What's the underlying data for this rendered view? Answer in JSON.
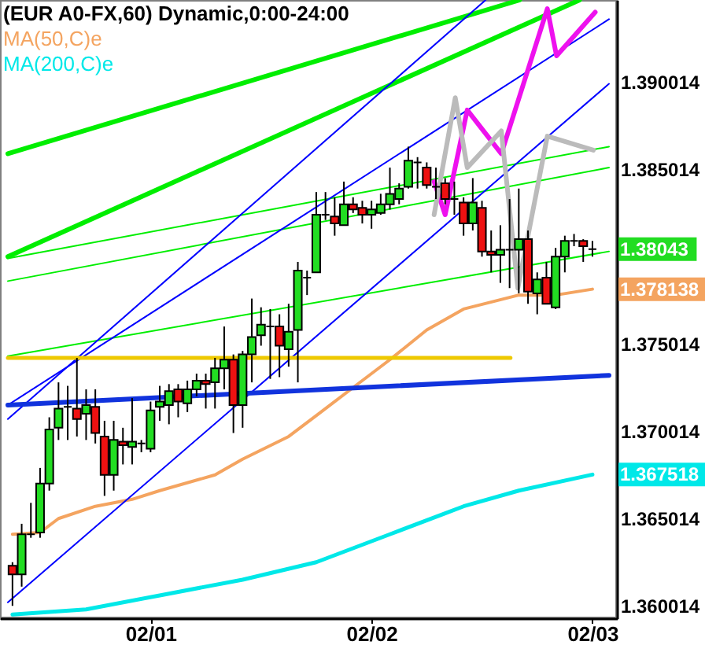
{
  "chart_data": {
    "type": "candlestick",
    "title": "(EUR A0-FX,60) Dynamic,0:00-24:00",
    "x": [
      "--01-31T09:00",
      "--01-31T10:00",
      "--01-31T11:00",
      "--01-31T12:00",
      "--01-31T13:00",
      "--01-31T14:00",
      "--01-31T15:00",
      "--01-31T16:00",
      "--01-31T17:00",
      "--01-31T18:00",
      "--01-31T19:00",
      "--01-31T20:00",
      "--01-31T21:00",
      "--01-31T22:00",
      "--01-31T23:00",
      "--02-01T00:00",
      "--02-01T01:00",
      "--02-01T02:00",
      "--02-01T03:00",
      "--02-01T04:00",
      "--02-01T05:00",
      "--02-01T06:00",
      "--02-01T07:00",
      "--02-01T08:00",
      "--02-01T09:00",
      "--02-01T10:00",
      "--02-01T11:00",
      "--02-01T12:00",
      "--02-01T13:00",
      "--02-01T14:00",
      "--02-01T15:00",
      "--02-01T16:00",
      "--02-01T17:00",
      "--02-01T18:00",
      "--02-01T19:00",
      "--02-01T20:00",
      "--02-01T21:00",
      "--02-01T22:00",
      "--02-01T23:00",
      "--02-02T00:00",
      "--02-02T01:00",
      "--02-02T02:00",
      "--02-02T03:00",
      "--02-02T04:00",
      "--02-02T05:00",
      "--02-02T06:00",
      "--02-02T07:00",
      "--02-02T08:00",
      "--02-02T09:00",
      "--02-02T10:00",
      "--02-02T11:00",
      "--02-02T12:00",
      "--02-02T13:00",
      "--02-02T14:00",
      "--02-02T15:00",
      "--02-02T16:00",
      "--02-02T17:00",
      "--02-02T18:00",
      "--02-02T19:00",
      "--02-02T20:00",
      "--02-02T21:00",
      "--02-02T22:00",
      "--02-02T23:00",
      "--02-03T00:00"
    ],
    "ohlc": [
      [
        1.3623,
        1.3625,
        1.36,
        1.3618
      ],
      [
        1.3618,
        1.3647,
        1.3611,
        1.3641
      ],
      [
        1.3641,
        1.3659,
        1.3639,
        1.3641
      ],
      [
        1.3642,
        1.3679,
        1.3639,
        1.367
      ],
      [
        1.367,
        1.3708,
        1.3666,
        1.3701
      ],
      [
        1.3702,
        1.3728,
        1.3695,
        1.3713
      ],
      [
        1.3714,
        1.3726,
        1.3695,
        1.3714
      ],
      [
        1.3713,
        1.3742,
        1.3697,
        1.3707
      ],
      [
        1.371,
        1.3724,
        1.3695,
        1.3715
      ],
      [
        1.3714,
        1.3724,
        1.3693,
        1.3699
      ],
      [
        1.3697,
        1.3706,
        1.3663,
        1.3675
      ],
      [
        1.3675,
        1.3706,
        1.3666,
        1.3695
      ],
      [
        1.3694,
        1.3702,
        1.3681,
        1.3692
      ],
      [
        1.3691,
        1.3719,
        1.3681,
        1.3694
      ],
      [
        1.3693,
        1.3695,
        1.3688,
        1.3693
      ],
      [
        1.369,
        1.3717,
        1.3688,
        1.3712
      ],
      [
        1.3714,
        1.3726,
        1.3706,
        1.3717
      ],
      [
        1.3715,
        1.3727,
        1.3704,
        1.3723
      ],
      [
        1.3724,
        1.3727,
        1.3708,
        1.3717
      ],
      [
        1.3716,
        1.3729,
        1.3711,
        1.3724
      ],
      [
        1.3724,
        1.3733,
        1.372,
        1.3729
      ],
      [
        1.3729,
        1.3733,
        1.3713,
        1.3727
      ],
      [
        1.3728,
        1.3742,
        1.3713,
        1.3736
      ],
      [
        1.3736,
        1.376,
        1.3724,
        1.3741
      ],
      [
        1.3741,
        1.3744,
        1.3699,
        1.3715
      ],
      [
        1.3715,
        1.3746,
        1.3702,
        1.3744
      ],
      [
        1.3744,
        1.3776,
        1.3728,
        1.3754
      ],
      [
        1.3755,
        1.3771,
        1.3749,
        1.3761
      ],
      [
        1.376,
        1.377,
        1.373,
        1.376
      ],
      [
        1.376,
        1.3767,
        1.3731,
        1.3749
      ],
      [
        1.3747,
        1.3773,
        1.3737,
        1.3757
      ],
      [
        1.3758,
        1.3797,
        1.3728,
        1.3792
      ],
      [
        1.3788,
        1.3792,
        1.3778,
        1.3788
      ],
      [
        1.3791,
        1.3837,
        1.3791,
        1.3824
      ],
      [
        1.3824,
        1.3837,
        1.3821,
        1.3824
      ],
      [
        1.3823,
        1.3834,
        1.3812,
        1.3819
      ],
      [
        1.3818,
        1.3843,
        1.3818,
        1.383
      ],
      [
        1.383,
        1.3834,
        1.3825,
        1.3827
      ],
      [
        1.3828,
        1.3832,
        1.3819,
        1.3824
      ],
      [
        1.3824,
        1.3832,
        1.3816,
        1.3827
      ],
      [
        1.3825,
        1.3836,
        1.3824,
        1.383
      ],
      [
        1.383,
        1.3851,
        1.3827,
        1.3836
      ],
      [
        1.3833,
        1.3842,
        1.383,
        1.3839
      ],
      [
        1.384,
        1.3863,
        1.3839,
        1.3855
      ],
      [
        1.3854,
        1.3857,
        1.3839,
        1.3854
      ],
      [
        1.3851,
        1.3854,
        1.3839,
        1.3841
      ],
      [
        1.384,
        1.3851,
        1.3833,
        1.384
      ],
      [
        1.3842,
        1.3845,
        1.383,
        1.3833
      ],
      [
        1.3833,
        1.3843,
        1.3824,
        1.3833
      ],
      [
        1.3831,
        1.3834,
        1.3812,
        1.3819
      ],
      [
        1.3819,
        1.3845,
        1.3815,
        1.3831
      ],
      [
        1.3828,
        1.3832,
        1.38,
        1.3803
      ],
      [
        1.3803,
        1.3815,
        1.3791,
        1.3801
      ],
      [
        1.3801,
        1.3818,
        1.3785,
        1.3804
      ],
      [
        1.3804,
        1.3833,
        1.3782,
        1.3804
      ],
      [
        1.3804,
        1.3839,
        1.3779,
        1.381
      ],
      [
        1.381,
        1.3815,
        1.3773,
        1.378
      ],
      [
        1.3779,
        1.3791,
        1.3767,
        1.3787
      ],
      [
        1.3788,
        1.3797,
        1.3773,
        1.3773
      ],
      [
        1.3771,
        1.3805,
        1.377,
        1.38
      ],
      [
        1.38,
        1.3812,
        1.3791,
        1.3809
      ],
      [
        1.3809,
        1.3813,
        1.3806,
        1.3809
      ],
      [
        1.3809,
        1.381,
        1.3797,
        1.3806
      ],
      [
        1.38043,
        1.3809,
        1.38,
        1.38043
      ]
    ],
    "colors": [
      "#ee1111",
      "#22dd22",
      "#000000",
      "#22dd22",
      "#22dd22",
      "#22dd22",
      "#000000",
      "#ee1111",
      "#22dd22",
      "#ee1111",
      "#ee1111",
      "#22dd22",
      "#ee1111",
      "#22dd22",
      "#000000",
      "#22dd22",
      "#22dd22",
      "#22dd22",
      "#ee1111",
      "#22dd22",
      "#22dd22",
      "#ee1111",
      "#22dd22",
      "#22dd22",
      "#ee1111",
      "#22dd22",
      "#22dd22",
      "#22dd22",
      "#000000",
      "#ee1111",
      "#22dd22",
      "#22dd22",
      "#000000",
      "#22dd22",
      "#000000",
      "#ee1111",
      "#22dd22",
      "#ee1111",
      "#ee1111",
      "#22dd22",
      "#22dd22",
      "#22dd22",
      "#22dd22",
      "#22dd22",
      "#000000",
      "#ee1111",
      "#000000",
      "#ee1111",
      "#000000",
      "#ee1111",
      "#22dd22",
      "#ee1111",
      "#ee1111",
      "#22dd22",
      "#000000",
      "#22dd22",
      "#ee1111",
      "#22dd22",
      "#ee1111",
      "#22dd22",
      "#22dd22",
      "#000000",
      "#ee1111",
      "#000000"
    ],
    "series": [
      {
        "type": "line",
        "name": "MA(50,C)e",
        "color": "#f4a460",
        "x": [
          "--01-31T09:00",
          "--01-31T12:00",
          "--01-31T14:00",
          "--01-31T18:00",
          "--01-31T22:00",
          "--02-01T01:00",
          "--02-01T07:00",
          "--02-01T10:00",
          "--02-01T15:00",
          "--02-01T18:00",
          "--02-01T22:00",
          "--02-02T02:00",
          "--02-02T06:00",
          "--02-02T10:00",
          "--02-02T16:00",
          "--02-02T20:00",
          "--02-03T00:00"
        ],
        "values": [
          1.3641,
          1.3642,
          1.365,
          1.3657,
          1.3661,
          1.3666,
          1.3675,
          1.3684,
          1.3697,
          1.3709,
          1.3725,
          1.3741,
          1.3758,
          1.377,
          1.3778,
          1.3778,
          1.378138
        ]
      },
      {
        "type": "line",
        "name": "MA(200,C)e",
        "color": "#00e8e8",
        "x": [
          "--01-31T09:00",
          "--01-31T17:00",
          "--02-01T01:00",
          "--02-01T10:00",
          "--02-01T18:00",
          "--02-02T02:00",
          "--02-02T08:00",
          "--02-02T10:00",
          "--02-02T16:00",
          "--02-03T00:00"
        ],
        "values": [
          1.3595,
          1.3598,
          1.3606,
          1.3615,
          1.3625,
          1.3641,
          1.3653,
          1.3657,
          1.3666,
          1.367518
        ]
      },
      {
        "type": "line",
        "color": "#00ee00",
        "x": [
          "--01-31T08:30",
          "--02-02T16:06"
        ],
        "values": [
          1.3859,
          1.3947
        ]
      },
      {
        "type": "line",
        "color": "#00ee00",
        "x": [
          "--01-31T08:30",
          "--02-02T22:36"
        ],
        "values": [
          1.38,
          1.3947
        ]
      },
      {
        "type": "line",
        "color": "#00ee00",
        "x": [
          "--01-31T08:30",
          "--02-03T01:48"
        ],
        "values": [
          1.3799,
          1.3863
        ]
      },
      {
        "type": "line",
        "color": "#00ee00",
        "x": [
          "--01-31T08:30",
          "--02-03T01:48"
        ],
        "values": [
          1.3786,
          1.3851
        ]
      },
      {
        "type": "line",
        "color": "#00ee00",
        "x": [
          "--01-31T08:30",
          "--02-03T01:48"
        ],
        "values": [
          1.3743,
          1.3803
        ]
      },
      {
        "type": "line",
        "color": "#0000ff",
        "x": [
          "--01-31T08:30",
          "--02-02T12:24"
        ],
        "values": [
          1.3707,
          1.3947
        ]
      },
      {
        "type": "line",
        "color": "#0000ff",
        "x": [
          "--01-31T08:30",
          "--02-03T01:48"
        ],
        "values": [
          1.3715,
          1.3936
        ]
      },
      {
        "type": "line",
        "color": "#0000ff",
        "x": [
          "--01-31T08:30",
          "--02-03T01:48"
        ],
        "values": [
          1.3602,
          1.3899
        ]
      },
      {
        "type": "line",
        "color": "#1133dd",
        "x": [
          "--01-31T08:30",
          "--02-03T01:48"
        ],
        "values": [
          1.3715,
          1.3732
        ]
      },
      {
        "type": "line",
        "color": "#eec900",
        "x": [
          "--01-31T08:30",
          "--02-02T15:06"
        ],
        "values": [
          1.3742,
          1.3742
        ]
      },
      {
        "type": "line",
        "color": "#ee11ee",
        "x": [
          "--02-02T06:48",
          "--02-02T08:00",
          "--02-02T10:24",
          "--02-02T14:06",
          "--02-02T19:06",
          "--02-02T20:06",
          "--02-03T00:18"
        ],
        "values": [
          1.3843,
          1.3824,
          1.3884,
          1.3859,
          1.3942,
          1.3915,
          1.394
        ]
      },
      {
        "type": "line",
        "color": "#bbbbbb",
        "x": [
          "--02-02T06:48",
          "--02-02T09:06",
          "--02-02T10:24",
          "--02-02T14:06",
          "--02-02T15:54",
          "--02-02T19:06",
          "--02-03T00:06"
        ],
        "values": [
          1.3824,
          1.3891,
          1.3851,
          1.3872,
          1.3782,
          1.3869,
          1.3861
        ]
      }
    ],
    "xlim": [
      "--01-31T08:30",
      "--02-03T01:48"
    ],
    "xticks": [
      {
        "value": "--02-01",
        "label": "02/01"
      },
      {
        "value": "--02-02",
        "label": "02/02"
      },
      {
        "value": "--02-03",
        "label": "02/03"
      }
    ],
    "ylim": [
      1.35929,
      1.3947
    ],
    "yticks": [
      1.360014,
      1.365014,
      1.370014,
      1.375014,
      1.385014,
      1.390014
    ],
    "annotations": [
      "1.38043",
      "1.378138",
      "1.367518"
    ],
    "legend": "top left"
  }
}
